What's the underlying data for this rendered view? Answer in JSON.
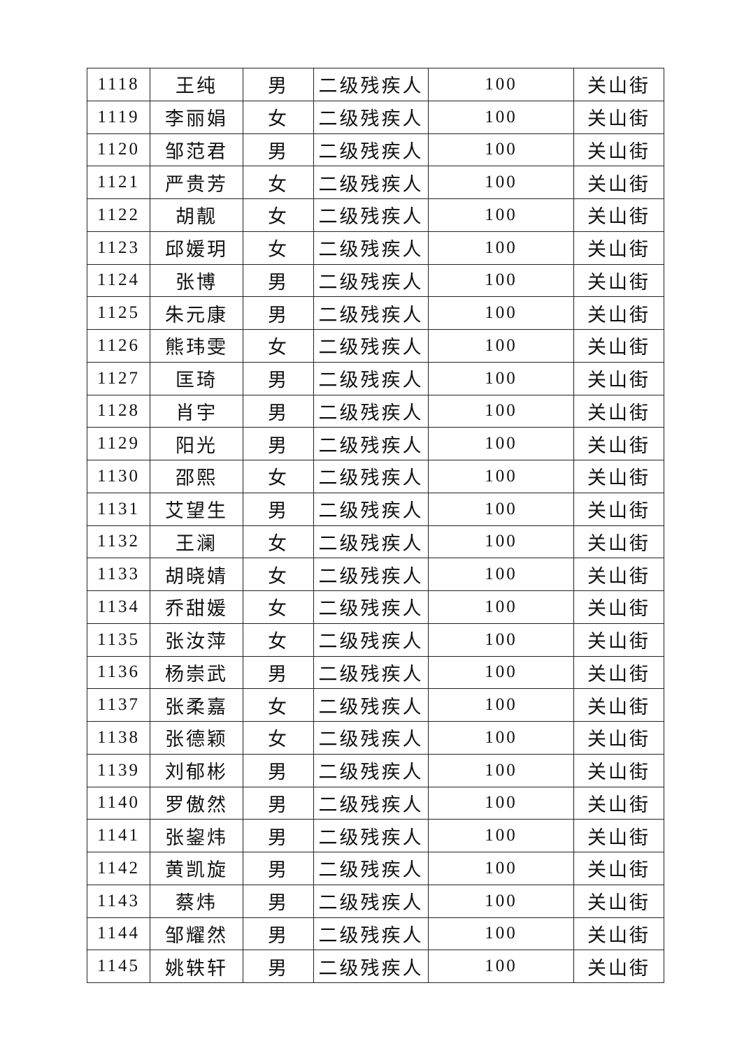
{
  "table": {
    "rows": [
      {
        "id": "1118",
        "name": "王纯",
        "gender": "男",
        "category": "二级残疾人",
        "amount": "100",
        "street": "关山街"
      },
      {
        "id": "1119",
        "name": "李丽娟",
        "gender": "女",
        "category": "二级残疾人",
        "amount": "100",
        "street": "关山街"
      },
      {
        "id": "1120",
        "name": "邹范君",
        "gender": "男",
        "category": "二级残疾人",
        "amount": "100",
        "street": "关山街"
      },
      {
        "id": "1121",
        "name": "严贵芳",
        "gender": "女",
        "category": "二级残疾人",
        "amount": "100",
        "street": "关山街"
      },
      {
        "id": "1122",
        "name": "胡靓",
        "gender": "女",
        "category": "二级残疾人",
        "amount": "100",
        "street": "关山街"
      },
      {
        "id": "1123",
        "name": "邱媛玥",
        "gender": "女",
        "category": "二级残疾人",
        "amount": "100",
        "street": "关山街"
      },
      {
        "id": "1124",
        "name": "张博",
        "gender": "男",
        "category": "二级残疾人",
        "amount": "100",
        "street": "关山街"
      },
      {
        "id": "1125",
        "name": "朱元康",
        "gender": "男",
        "category": "二级残疾人",
        "amount": "100",
        "street": "关山街"
      },
      {
        "id": "1126",
        "name": "熊玮雯",
        "gender": "女",
        "category": "二级残疾人",
        "amount": "100",
        "street": "关山街"
      },
      {
        "id": "1127",
        "name": "匡琦",
        "gender": "男",
        "category": "二级残疾人",
        "amount": "100",
        "street": "关山街"
      },
      {
        "id": "1128",
        "name": "肖宇",
        "gender": "男",
        "category": "二级残疾人",
        "amount": "100",
        "street": "关山街"
      },
      {
        "id": "1129",
        "name": "阳光",
        "gender": "男",
        "category": "二级残疾人",
        "amount": "100",
        "street": "关山街"
      },
      {
        "id": "1130",
        "name": "邵熙",
        "gender": "女",
        "category": "二级残疾人",
        "amount": "100",
        "street": "关山街"
      },
      {
        "id": "1131",
        "name": "艾望生",
        "gender": "男",
        "category": "二级残疾人",
        "amount": "100",
        "street": "关山街"
      },
      {
        "id": "1132",
        "name": "王澜",
        "gender": "女",
        "category": "二级残疾人",
        "amount": "100",
        "street": "关山街"
      },
      {
        "id": "1133",
        "name": "胡晓婧",
        "gender": "女",
        "category": "二级残疾人",
        "amount": "100",
        "street": "关山街"
      },
      {
        "id": "1134",
        "name": "乔甜媛",
        "gender": "女",
        "category": "二级残疾人",
        "amount": "100",
        "street": "关山街"
      },
      {
        "id": "1135",
        "name": "张汝萍",
        "gender": "女",
        "category": "二级残疾人",
        "amount": "100",
        "street": "关山街"
      },
      {
        "id": "1136",
        "name": "杨崇武",
        "gender": "男",
        "category": "二级残疾人",
        "amount": "100",
        "street": "关山街"
      },
      {
        "id": "1137",
        "name": "张柔嘉",
        "gender": "女",
        "category": "二级残疾人",
        "amount": "100",
        "street": "关山街"
      },
      {
        "id": "1138",
        "name": "张德颖",
        "gender": "女",
        "category": "二级残疾人",
        "amount": "100",
        "street": "关山街"
      },
      {
        "id": "1139",
        "name": "刘郁彬",
        "gender": "男",
        "category": "二级残疾人",
        "amount": "100",
        "street": "关山街"
      },
      {
        "id": "1140",
        "name": "罗傲然",
        "gender": "男",
        "category": "二级残疾人",
        "amount": "100",
        "street": "关山街"
      },
      {
        "id": "1141",
        "name": "张鋆炜",
        "gender": "男",
        "category": "二级残疾人",
        "amount": "100",
        "street": "关山街"
      },
      {
        "id": "1142",
        "name": "黄凯旋",
        "gender": "男",
        "category": "二级残疾人",
        "amount": "100",
        "street": "关山街"
      },
      {
        "id": "1143",
        "name": "蔡炜",
        "gender": "男",
        "category": "二级残疾人",
        "amount": "100",
        "street": "关山街"
      },
      {
        "id": "1144",
        "name": "邹耀然",
        "gender": "男",
        "category": "二级残疾人",
        "amount": "100",
        "street": "关山街"
      },
      {
        "id": "1145",
        "name": "姚轶轩",
        "gender": "男",
        "category": "二级残疾人",
        "amount": "100",
        "street": "关山街"
      }
    ]
  }
}
